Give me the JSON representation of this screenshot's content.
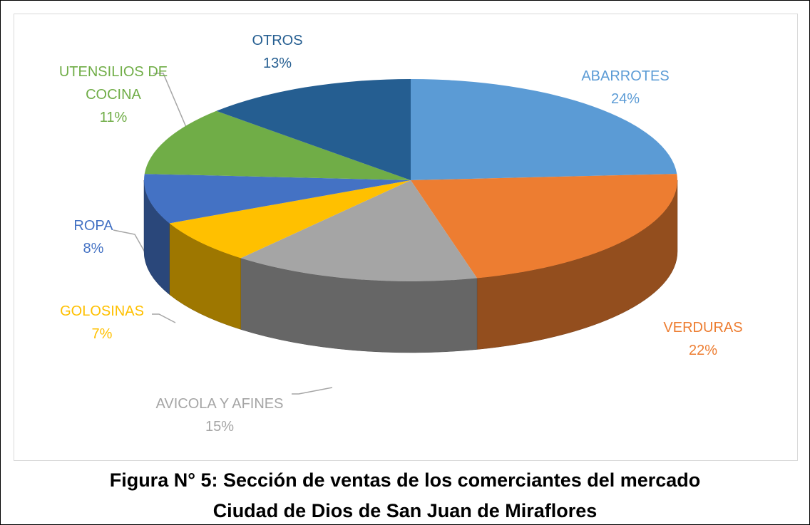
{
  "chart_data": {
    "type": "pie",
    "categories": [
      "ABARROTES",
      "VERDURAS",
      "AVICOLA Y AFINES",
      "GOLOSINAS",
      "ROPA",
      "UTENSILIOS DE COCINA",
      "OTROS"
    ],
    "values": [
      24,
      22,
      15,
      7,
      8,
      11,
      13
    ],
    "value_labels": [
      "24%",
      "22%",
      "15%",
      "7%",
      "8%",
      "11%",
      "13%"
    ],
    "colors": [
      "#5b9bd5",
      "#ed7d31",
      "#a5a5a5",
      "#ffc000",
      "#4472c4",
      "#70ad47",
      "#255e91"
    ],
    "caption": [
      "Figura N° 5: Sección de ventas de los comerciantes del mercado",
      "Ciudad de Dios de San Juan de Miraflores"
    ]
  }
}
